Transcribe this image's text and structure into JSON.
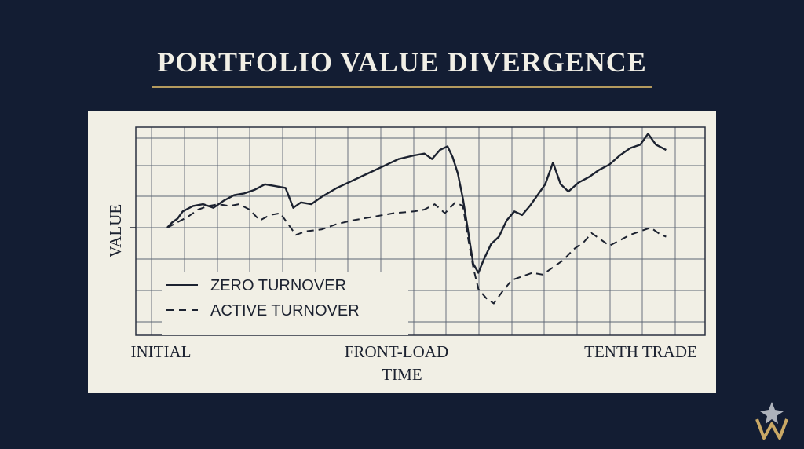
{
  "chart_data": {
    "type": "line",
    "title": "PORTFOLIO VALUE DIVERGENCE",
    "xlabel": "TIME",
    "ylabel": "VALUE",
    "x_tick_labels": [
      "INITIAL",
      "FRONT-LOAD",
      "TENTH TRADE"
    ],
    "grid": true,
    "legend_position": "bottom-left",
    "series": [
      {
        "name": "ZERO TURNOVER",
        "style": "solid",
        "color": "#1c2230",
        "values": [
          [
            0.0,
            0.0
          ],
          [
            0.01,
            0.03
          ],
          [
            0.02,
            0.05
          ],
          [
            0.03,
            0.09
          ],
          [
            0.05,
            0.12
          ],
          [
            0.07,
            0.13
          ],
          [
            0.09,
            0.11
          ],
          [
            0.11,
            0.15
          ],
          [
            0.13,
            0.18
          ],
          [
            0.15,
            0.19
          ],
          [
            0.17,
            0.21
          ],
          [
            0.19,
            0.24
          ],
          [
            0.21,
            0.23
          ],
          [
            0.23,
            0.22
          ],
          [
            0.245,
            0.11
          ],
          [
            0.26,
            0.14
          ],
          [
            0.28,
            0.13
          ],
          [
            0.3,
            0.17
          ],
          [
            0.33,
            0.22
          ],
          [
            0.36,
            0.26
          ],
          [
            0.39,
            0.3
          ],
          [
            0.42,
            0.34
          ],
          [
            0.45,
            0.38
          ],
          [
            0.48,
            0.4
          ],
          [
            0.5,
            0.41
          ],
          [
            0.515,
            0.38
          ],
          [
            0.53,
            0.43
          ],
          [
            0.545,
            0.45
          ],
          [
            0.555,
            0.39
          ],
          [
            0.565,
            0.3
          ],
          [
            0.575,
            0.16
          ],
          [
            0.585,
            -0.02
          ],
          [
            0.595,
            -0.2
          ],
          [
            0.605,
            -0.25
          ],
          [
            0.615,
            -0.18
          ],
          [
            0.63,
            -0.09
          ],
          [
            0.645,
            -0.05
          ],
          [
            0.66,
            0.04
          ],
          [
            0.675,
            0.09
          ],
          [
            0.69,
            0.07
          ],
          [
            0.705,
            0.12
          ],
          [
            0.72,
            0.18
          ],
          [
            0.735,
            0.24
          ],
          [
            0.75,
            0.36
          ],
          [
            0.765,
            0.24
          ],
          [
            0.78,
            0.2
          ],
          [
            0.8,
            0.25
          ],
          [
            0.82,
            0.28
          ],
          [
            0.84,
            0.32
          ],
          [
            0.86,
            0.35
          ],
          [
            0.88,
            0.4
          ],
          [
            0.9,
            0.44
          ],
          [
            0.92,
            0.46
          ],
          [
            0.935,
            0.52
          ],
          [
            0.95,
            0.46
          ],
          [
            0.97,
            0.43
          ]
        ]
      },
      {
        "name": "ACTIVE TURNOVER",
        "style": "dashed",
        "color": "#1c2230",
        "values": [
          [
            0.0,
            0.0
          ],
          [
            0.02,
            0.03
          ],
          [
            0.04,
            0.06
          ],
          [
            0.06,
            0.1
          ],
          [
            0.08,
            0.12
          ],
          [
            0.1,
            0.13
          ],
          [
            0.12,
            0.12
          ],
          [
            0.14,
            0.13
          ],
          [
            0.16,
            0.1
          ],
          [
            0.18,
            0.04
          ],
          [
            0.2,
            0.07
          ],
          [
            0.22,
            0.08
          ],
          [
            0.24,
            0.0
          ],
          [
            0.25,
            -0.04
          ],
          [
            0.27,
            -0.02
          ],
          [
            0.3,
            -0.01
          ],
          [
            0.33,
            0.02
          ],
          [
            0.36,
            0.04
          ],
          [
            0.4,
            0.06
          ],
          [
            0.44,
            0.08
          ],
          [
            0.48,
            0.09
          ],
          [
            0.5,
            0.1
          ],
          [
            0.52,
            0.13
          ],
          [
            0.54,
            0.08
          ],
          [
            0.56,
            0.14
          ],
          [
            0.575,
            0.12
          ],
          [
            0.585,
            -0.06
          ],
          [
            0.595,
            -0.22
          ],
          [
            0.605,
            -0.34
          ],
          [
            0.62,
            -0.39
          ],
          [
            0.635,
            -0.42
          ],
          [
            0.65,
            -0.36
          ],
          [
            0.67,
            -0.29
          ],
          [
            0.69,
            -0.27
          ],
          [
            0.71,
            -0.25
          ],
          [
            0.73,
            -0.26
          ],
          [
            0.75,
            -0.22
          ],
          [
            0.77,
            -0.18
          ],
          [
            0.79,
            -0.12
          ],
          [
            0.81,
            -0.08
          ],
          [
            0.825,
            -0.03
          ],
          [
            0.84,
            -0.06
          ],
          [
            0.86,
            -0.1
          ],
          [
            0.88,
            -0.07
          ],
          [
            0.9,
            -0.04
          ],
          [
            0.92,
            -0.02
          ],
          [
            0.94,
            0.0
          ],
          [
            0.96,
            -0.04
          ],
          [
            0.97,
            -0.05
          ]
        ]
      }
    ]
  }
}
